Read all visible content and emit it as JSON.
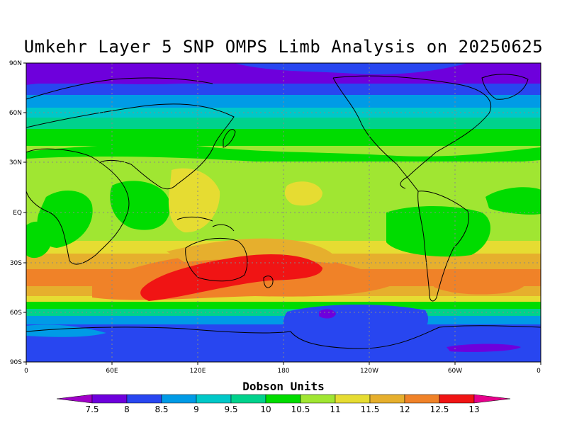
{
  "title": "Umkehr Layer 5 SNP OMPS Limb Analysis on 20250625",
  "colorbar_title": "Dobson Units",
  "lat_labels": [
    "90N",
    "60N",
    "30N",
    "EQ",
    "30S",
    "60S",
    "90S"
  ],
  "lon_labels": [
    "0",
    "60E",
    "120E",
    "180",
    "120W",
    "60W",
    "0"
  ],
  "colorbar_ticks": [
    "7.5",
    "8",
    "8.5",
    "9",
    "9.5",
    "10",
    "10.5",
    "11",
    "11.5",
    "12",
    "12.5",
    "13"
  ],
  "colorbar_colors": [
    "#a000c8",
    "#6e00dc",
    "#2846f0",
    "#009be6",
    "#00c8c8",
    "#00d28c",
    "#00dc00",
    "#a0e632",
    "#e6dc32",
    "#e6af2d",
    "#f08228",
    "#f01414",
    "#e6008c"
  ],
  "colors": {
    "v7_5": "#a000c8",
    "v8": "#6e00dc",
    "v8_5": "#2846f0",
    "v9": "#009be6",
    "v9_5": "#00c8c8",
    "v10": "#00d28c",
    "v10_5": "#00dc00",
    "v11": "#a0e632",
    "v11_5": "#e6dc32",
    "v12": "#e6af2d",
    "v12_5": "#f08228",
    "v13": "#f01414"
  }
}
